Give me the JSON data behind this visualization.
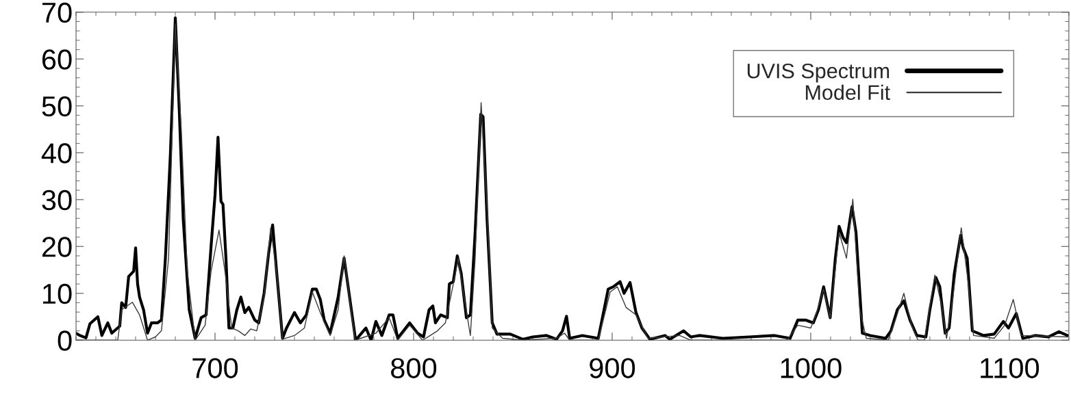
{
  "chart_data": {
    "type": "line",
    "xlim": [
      630,
      1130
    ],
    "xticks": [
      700,
      800,
      900,
      1000,
      1100
    ],
    "ylim": [
      0,
      70
    ],
    "yticks": [
      0,
      10,
      20,
      30,
      40,
      50,
      60,
      70
    ],
    "grid": false,
    "legend": "top right",
    "marker": "none",
    "line_style": "solid",
    "series": [
      {
        "name": "UVIS Spectrum",
        "color": "#000000",
        "x": [
          630,
          632,
          635,
          637,
          641,
          643,
          646,
          648,
          652,
          653,
          655,
          656.5,
          659,
          660,
          661,
          662,
          664,
          666,
          668,
          671,
          673,
          675,
          677.5,
          680,
          682,
          684,
          687,
          690,
          693,
          695.5,
          698,
          700,
          701.5,
          703,
          704,
          705.5,
          707,
          709,
          711,
          713,
          715,
          717,
          720,
          722,
          724.7,
          727,
          729,
          731,
          734,
          736,
          740,
          743,
          746,
          749,
          751,
          753,
          755,
          758,
          762,
          765,
          767.5,
          770.8,
          776,
          778.6,
          781,
          784,
          787.7,
          789.6,
          792,
          798,
          802,
          805,
          807.8,
          809.7,
          811,
          813.6,
          817,
          818,
          820,
          822,
          824,
          826.6,
          828.6,
          831,
          833.8,
          835,
          837,
          839.6,
          842,
          848.7,
          855,
          860,
          867,
          872,
          875,
          877,
          878.6,
          885,
          893,
          898,
          900.6,
          904,
          906,
          909,
          912,
          915,
          919,
          926.6,
          929,
          936,
          939.6,
          944,
          955.7,
          969,
          981.8,
          989.6,
          993.5,
          997.4,
          1001.3,
          1003.9,
          1006.5,
          1009.8,
          1012.4,
          1014.3,
          1016.3,
          1018,
          1020.8,
          1022.8,
          1026,
          1030,
          1037.8,
          1040.4,
          1043.6,
          1046.9,
          1050,
          1053.4,
          1058,
          1060,
          1063,
          1065,
          1067.7,
          1069.7,
          1072.3,
          1075.5,
          1076.8,
          1078.8,
          1081.4,
          1087,
          1092.4,
          1097,
          1099.6,
          1103.5,
          1106.8,
          1113,
          1119.8,
          1125,
          1129.3
        ],
        "values": [
          1.5,
          1,
          0.5,
          3.5,
          5,
          1,
          3.7,
          1.5,
          3,
          8,
          7,
          13.6,
          14.7,
          19.7,
          12,
          9.2,
          6.5,
          1.5,
          3.7,
          3.7,
          4.3,
          17.5,
          39.5,
          68.8,
          49,
          25.7,
          6.5,
          0.4,
          4.8,
          5.4,
          20,
          31,
          43.3,
          29.6,
          29,
          17.5,
          2.6,
          2.6,
          6.5,
          9.2,
          5.9,
          7,
          4.3,
          3.7,
          10,
          18.6,
          24.6,
          14.7,
          0.4,
          2.6,
          5.9,
          3.7,
          5.4,
          10.9,
          10.9,
          8.7,
          4.3,
          1.5,
          9.2,
          17.5,
          10,
          0,
          2.6,
          0,
          4,
          1,
          5.4,
          5.4,
          0.4,
          3.7,
          1.5,
          0.7,
          6.5,
          7.3,
          3.7,
          5.4,
          4.8,
          12,
          12.5,
          18,
          14.2,
          4.8,
          5.4,
          23,
          48.2,
          47.7,
          25.7,
          3.7,
          1.3,
          1.3,
          0.2,
          0.7,
          1,
          0.2,
          2,
          5.1,
          0.4,
          1,
          0.4,
          10.9,
          11.4,
          12.5,
          10,
          12.3,
          5.9,
          2.6,
          0.2,
          1,
          0.2,
          2,
          0.7,
          1,
          0.4,
          0.7,
          1,
          0.4,
          4.3,
          4.3,
          3.7,
          6.5,
          11.4,
          4.8,
          17.5,
          24.3,
          21.9,
          20.8,
          28.5,
          23,
          1.5,
          1,
          0.4,
          2,
          6.5,
          8.4,
          4.3,
          1,
          0.7,
          6.5,
          13.4,
          11.4,
          1.5,
          2.6,
          14.2,
          22.4,
          19.7,
          17.5,
          2,
          1,
          1.3,
          4,
          2.6,
          5.7,
          0.4,
          1,
          0.7,
          1.8,
          1
        ]
      },
      {
        "name": "Model Fit",
        "color": "#3a3a3a",
        "x": [
          630,
          651,
          653,
          658.4,
          662,
          666,
          670,
          673,
          676.6,
          680,
          683,
          686,
          690,
          695,
          698,
          702,
          705,
          708.4,
          711.7,
          715,
          718,
          721,
          724.7,
          728,
          731,
          734,
          740,
          745,
          749,
          753,
          758,
          762,
          765,
          769,
          770.6,
          781,
          787.7,
          792,
          798,
          804.5,
          808.4,
          812,
          816,
          820,
          822.5,
          825,
          828.6,
          831,
          834,
          837,
          839.6,
          844.8,
          855,
          872,
          876,
          878.6,
          893,
          899,
          902.6,
          907,
          912,
          918,
          934,
          939.6,
          988,
          993.5,
          1000,
          1002.6,
          1006.5,
          1009.8,
          1014.3,
          1018,
          1021.2,
          1024.7,
          1028,
          1039,
          1043,
          1046.9,
          1050.8,
          1054,
          1057.3,
          1062.5,
          1065.8,
          1068.4,
          1071.6,
          1075.8,
          1079.4,
          1082,
          1092.4,
          1097.7,
          1102,
          1106,
          1129.3
        ],
        "values": [
          0,
          0,
          6.5,
          8.1,
          5.4,
          0,
          0.7,
          2,
          17.5,
          67.5,
          45,
          14.7,
          0,
          3.2,
          14.7,
          23.5,
          14.7,
          2.6,
          2,
          1,
          2.4,
          2,
          9.2,
          24,
          14.7,
          0.2,
          1,
          2.6,
          10.3,
          5.9,
          1,
          6.5,
          18,
          4.8,
          0,
          1.5,
          4.8,
          0,
          3.2,
          0,
          1,
          2,
          3.7,
          12,
          17.5,
          10.3,
          1,
          17.5,
          50.7,
          28.5,
          2.6,
          0.4,
          0,
          0.4,
          1.5,
          0,
          0,
          10.3,
          11.4,
          7,
          5.4,
          0.4,
          1,
          0,
          0,
          3.2,
          2.6,
          5.4,
          10.9,
          4.8,
          23,
          17.5,
          30.1,
          6.5,
          0.4,
          0,
          4.8,
          10,
          3.2,
          0,
          0,
          13.9,
          7.6,
          0.4,
          9.2,
          24,
          12,
          1,
          0.4,
          3.2,
          8.7,
          1,
          0.7
        ]
      }
    ]
  }
}
